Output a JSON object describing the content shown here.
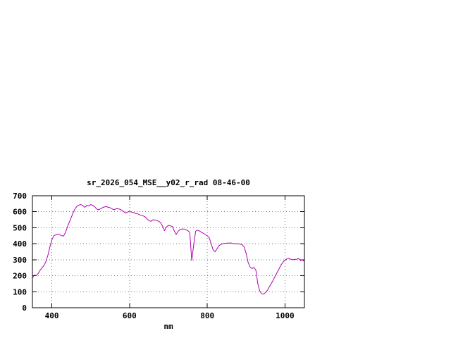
{
  "page": {
    "background": "#ffffff"
  },
  "chart": {
    "title": "sr_2026_054_MSE__y02_r_rad 08-46-00",
    "xlabel": "nm",
    "border_color": "#000000",
    "grid_color": "#777777",
    "text_color": "#000000"
  },
  "chart_data": {
    "type": "line",
    "title": "sr_2026_054_MSE__y02_r_rad 08-46-00",
    "xlabel": "nm",
    "ylabel": "",
    "xlim": [
      350,
      1050
    ],
    "ylim": [
      0,
      700
    ],
    "x_ticks": [
      400,
      600,
      800,
      1000
    ],
    "y_ticks": [
      0,
      100,
      200,
      300,
      400,
      500,
      600,
      700
    ],
    "grid": true,
    "legend": "none",
    "series": [
      {
        "name": "sr_2026_054_MSE__y02_r_rad",
        "color": "#b000b0",
        "x": [
          350,
          355,
          360,
          365,
          370,
          375,
          380,
          385,
          390,
          395,
          400,
          405,
          410,
          415,
          420,
          425,
          430,
          435,
          440,
          445,
          450,
          455,
          460,
          465,
          470,
          475,
          480,
          485,
          490,
          495,
          500,
          505,
          510,
          515,
          520,
          525,
          530,
          535,
          540,
          545,
          550,
          555,
          560,
          565,
          570,
          575,
          580,
          585,
          590,
          595,
          600,
          605,
          610,
          615,
          620,
          625,
          630,
          635,
          640,
          645,
          650,
          655,
          660,
          665,
          670,
          675,
          680,
          685,
          690,
          695,
          700,
          705,
          710,
          715,
          720,
          725,
          730,
          735,
          740,
          745,
          750,
          755,
          760,
          765,
          770,
          775,
          780,
          785,
          790,
          795,
          800,
          805,
          810,
          815,
          820,
          825,
          830,
          835,
          840,
          845,
          850,
          855,
          860,
          865,
          870,
          875,
          880,
          885,
          890,
          895,
          900,
          905,
          910,
          915,
          920,
          925,
          930,
          935,
          940,
          945,
          950,
          955,
          960,
          965,
          970,
          975,
          980,
          985,
          990,
          995,
          1000,
          1005,
          1010,
          1015,
          1020,
          1025,
          1030,
          1035,
          1040,
          1045,
          1050
        ],
        "y": [
          185,
          205,
          200,
          215,
          235,
          250,
          265,
          290,
          330,
          380,
          425,
          450,
          455,
          460,
          458,
          450,
          448,
          470,
          505,
          535,
          565,
          595,
          620,
          635,
          642,
          645,
          638,
          628,
          640,
          636,
          645,
          640,
          632,
          618,
          612,
          618,
          625,
          630,
          632,
          628,
          625,
          618,
          612,
          618,
          620,
          615,
          610,
          600,
          592,
          598,
          602,
          598,
          595,
          590,
          588,
          582,
          578,
          574,
          568,
          555,
          545,
          540,
          550,
          548,
          545,
          540,
          532,
          510,
          482,
          505,
          515,
          512,
          508,
          480,
          458,
          478,
          490,
          492,
          492,
          488,
          482,
          470,
          295,
          390,
          478,
          485,
          480,
          472,
          465,
          458,
          450,
          438,
          400,
          362,
          350,
          368,
          388,
          396,
          400,
          402,
          404,
          404,
          405,
          402,
          400,
          400,
          400,
          398,
          393,
          380,
          340,
          285,
          255,
          245,
          252,
          235,
          150,
          105,
          88,
          85,
          95,
          110,
          132,
          152,
          175,
          198,
          222,
          245,
          268,
          285,
          298,
          305,
          308,
          303,
          300,
          302,
          303,
          308,
          295,
          300,
          288
        ]
      }
    ]
  }
}
